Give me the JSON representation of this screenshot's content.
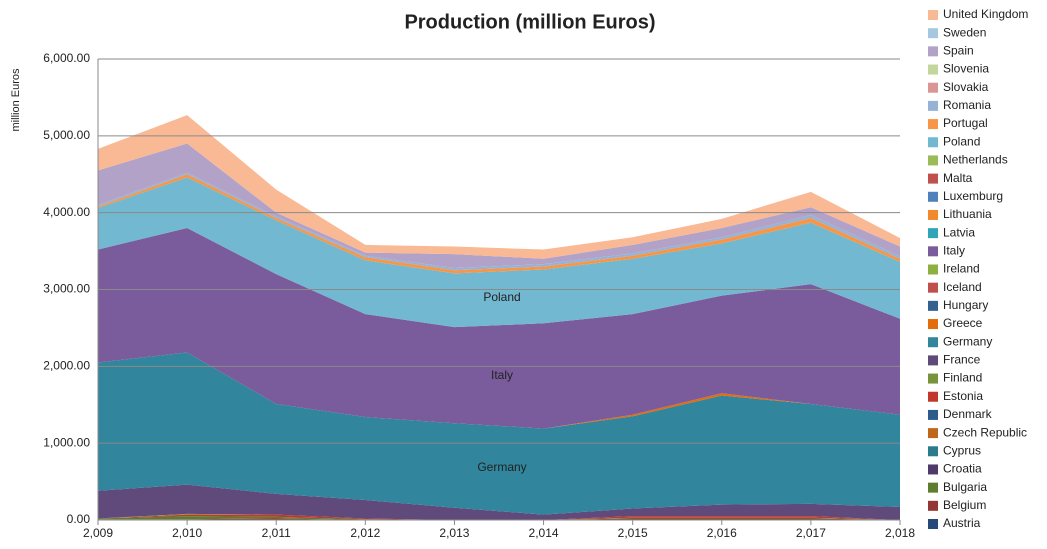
{
  "chart_data": {
    "type": "stacked_area",
    "title": "Production (million Euros)",
    "y_label": "million Euros",
    "categories": [
      "2,009",
      "2,010",
      "2,011",
      "2,012",
      "2,013",
      "2,014",
      "2,015",
      "2,016",
      "2,017",
      "2,018"
    ],
    "ylim": [
      0,
      6000
    ],
    "yticks": [
      {
        "value": 0,
        "label": "0.00"
      },
      {
        "value": 1000,
        "label": "1,000.00"
      },
      {
        "value": 2000,
        "label": "2,000.00"
      },
      {
        "value": 3000,
        "label": "3,000.00"
      },
      {
        "value": 4000,
        "label": "4,000.00"
      },
      {
        "value": 5000,
        "label": "5,000.00"
      },
      {
        "value": 6000,
        "label": "6,000.00"
      }
    ],
    "grid": true,
    "legend": "right",
    "annotations": [
      "Poland",
      "Italy",
      "Germany"
    ],
    "series": [
      {
        "name": "Austria",
        "color": "#254a78",
        "values": [
          0,
          0,
          0,
          0,
          0,
          0,
          0,
          0,
          0,
          0
        ]
      },
      {
        "name": "Belgium",
        "color": "#943634",
        "values": [
          10,
          10,
          20,
          0,
          0,
          0,
          20,
          20,
          20,
          0
        ]
      },
      {
        "name": "Bulgaria",
        "color": "#5f7d2e",
        "values": [
          10,
          40,
          20,
          10,
          0,
          0,
          10,
          10,
          10,
          0
        ]
      },
      {
        "name": "Croatia",
        "color": "#503a6b",
        "values": [
          0,
          0,
          0,
          0,
          0,
          0,
          0,
          0,
          0,
          0
        ]
      },
      {
        "name": "Cyprus",
        "color": "#2c7a8c",
        "values": [
          0,
          0,
          0,
          0,
          0,
          0,
          0,
          0,
          0,
          0
        ]
      },
      {
        "name": "Czech Republic",
        "color": "#c0661a",
        "values": [
          0,
          0,
          0,
          0,
          0,
          0,
          0,
          0,
          0,
          0
        ]
      },
      {
        "name": "Denmark",
        "color": "#2e5c8a",
        "values": [
          0,
          0,
          0,
          0,
          0,
          0,
          0,
          0,
          0,
          0
        ]
      },
      {
        "name": "Estonia",
        "color": "#c0392b",
        "values": [
          0,
          20,
          30,
          10,
          0,
          0,
          20,
          20,
          20,
          0
        ]
      },
      {
        "name": "Finland",
        "color": "#77933c",
        "values": [
          0,
          10,
          0,
          0,
          0,
          0,
          0,
          0,
          0,
          0
        ]
      },
      {
        "name": "France",
        "color": "#604a7b",
        "values": [
          360,
          380,
          270,
          240,
          160,
          70,
          100,
          150,
          160,
          170
        ]
      },
      {
        "name": "Germany",
        "color": "#31859c",
        "values": [
          1670,
          1720,
          1170,
          1080,
          1100,
          1120,
          1200,
          1420,
          1300,
          1200
        ]
      },
      {
        "name": "Greece",
        "color": "#e46c0a",
        "values": [
          0,
          0,
          0,
          0,
          0,
          0,
          20,
          30,
          0,
          0
        ]
      },
      {
        "name": "Hungary",
        "color": "#376092",
        "values": [
          0,
          0,
          0,
          0,
          0,
          0,
          0,
          0,
          0,
          0
        ]
      },
      {
        "name": "Iceland",
        "color": "#c0504d",
        "values": [
          0,
          0,
          0,
          0,
          0,
          0,
          0,
          0,
          0,
          0
        ]
      },
      {
        "name": "Ireland",
        "color": "#8db040",
        "values": [
          0,
          0,
          0,
          0,
          0,
          0,
          0,
          0,
          0,
          0
        ]
      },
      {
        "name": "Italy",
        "color": "#7a5c9c",
        "values": [
          1470,
          1620,
          1690,
          1340,
          1250,
          1370,
          1310,
          1270,
          1560,
          1250
        ]
      },
      {
        "name": "Latvia",
        "color": "#31a5b8",
        "values": [
          0,
          0,
          0,
          0,
          0,
          0,
          0,
          0,
          0,
          0
        ]
      },
      {
        "name": "Lithuania",
        "color": "#f08a2c",
        "values": [
          0,
          0,
          0,
          0,
          0,
          0,
          0,
          0,
          0,
          0
        ]
      },
      {
        "name": "Luxemburg",
        "color": "#4f81bd",
        "values": [
          0,
          0,
          0,
          0,
          0,
          0,
          0,
          0,
          0,
          0
        ]
      },
      {
        "name": "Malta",
        "color": "#c0504d",
        "values": [
          0,
          0,
          0,
          0,
          0,
          0,
          0,
          0,
          0,
          0
        ]
      },
      {
        "name": "Netherlands",
        "color": "#9bbb59",
        "values": [
          0,
          0,
          0,
          0,
          0,
          0,
          0,
          0,
          0,
          0
        ]
      },
      {
        "name": "Poland",
        "color": "#72b8d0",
        "values": [
          540,
          660,
          700,
          700,
          700,
          700,
          720,
          680,
          800,
          740
        ]
      },
      {
        "name": "Portugal",
        "color": "#f79646",
        "values": [
          20,
          40,
          30,
          40,
          40,
          40,
          40,
          50,
          60,
          40
        ]
      },
      {
        "name": "Romania",
        "color": "#95b3d7",
        "values": [
          20,
          20,
          20,
          20,
          30,
          30,
          30,
          30,
          40,
          30
        ]
      },
      {
        "name": "Slovakia",
        "color": "#d99694",
        "values": [
          0,
          0,
          0,
          0,
          0,
          0,
          0,
          0,
          0,
          0
        ]
      },
      {
        "name": "Slovenia",
        "color": "#c3d69b",
        "values": [
          0,
          0,
          0,
          0,
          0,
          0,
          0,
          0,
          0,
          0
        ]
      },
      {
        "name": "Spain",
        "color": "#b3a2c7",
        "values": [
          450,
          380,
          50,
          40,
          180,
          70,
          110,
          120,
          100,
          130
        ]
      },
      {
        "name": "Sweden",
        "color": "#a5c8e0",
        "values": [
          0,
          0,
          0,
          0,
          0,
          0,
          0,
          0,
          0,
          0
        ]
      },
      {
        "name": "United Kingdom",
        "color": "#f9b994",
        "values": [
          280,
          370,
          300,
          100,
          100,
          120,
          100,
          120,
          200,
          110
        ]
      }
    ]
  }
}
